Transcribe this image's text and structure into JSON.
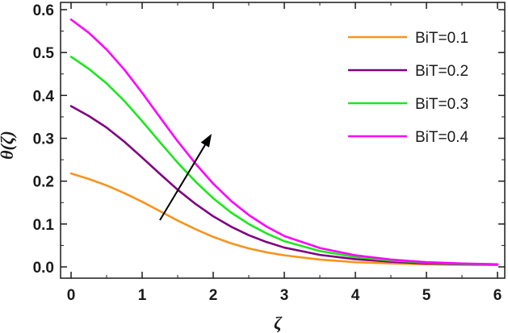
{
  "chart_data": {
    "type": "line",
    "title": "",
    "xlabel": "ζ",
    "ylabel": "θ(ζ)",
    "xlim": [
      0,
      6
    ],
    "ylim": [
      0,
      0.6
    ],
    "xticks": [
      "0",
      "1",
      "2",
      "3",
      "4",
      "5",
      "6"
    ],
    "yticks": [
      "0.0",
      "0.1",
      "0.2",
      "0.3",
      "0.4",
      "0.5",
      "0.6"
    ],
    "grid": false,
    "legend_position": "top-right",
    "annotation": "arrow indicating increasing BiT",
    "x": [
      0,
      0.25,
      0.5,
      0.75,
      1.0,
      1.25,
      1.5,
      1.75,
      2.0,
      2.25,
      2.5,
      2.75,
      3.0,
      3.5,
      4.0,
      4.5,
      5.0,
      5.5,
      6.0
    ],
    "series": [
      {
        "name": "BiT=0.1",
        "color": "#f7941d",
        "values": [
          0.218,
          0.205,
          0.19,
          0.172,
          0.152,
          0.13,
          0.108,
          0.088,
          0.07,
          0.055,
          0.043,
          0.034,
          0.027,
          0.017,
          0.011,
          0.008,
          0.006,
          0.005,
          0.005
        ]
      },
      {
        "name": "BiT=0.2",
        "color": "#800080",
        "values": [
          0.375,
          0.352,
          0.325,
          0.292,
          0.255,
          0.217,
          0.18,
          0.147,
          0.118,
          0.094,
          0.074,
          0.058,
          0.045,
          0.028,
          0.018,
          0.012,
          0.008,
          0.006,
          0.005
        ]
      },
      {
        "name": "BiT=0.3",
        "color": "#1ee61e",
        "values": [
          0.49,
          0.462,
          0.428,
          0.387,
          0.34,
          0.291,
          0.243,
          0.199,
          0.16,
          0.127,
          0.1,
          0.078,
          0.06,
          0.037,
          0.023,
          0.015,
          0.01,
          0.007,
          0.006
        ]
      },
      {
        "name": "BiT=0.4",
        "color": "#ff00ff",
        "values": [
          0.577,
          0.546,
          0.507,
          0.46,
          0.406,
          0.349,
          0.293,
          0.241,
          0.194,
          0.154,
          0.121,
          0.094,
          0.072,
          0.044,
          0.027,
          0.017,
          0.011,
          0.008,
          0.006
        ]
      }
    ]
  }
}
